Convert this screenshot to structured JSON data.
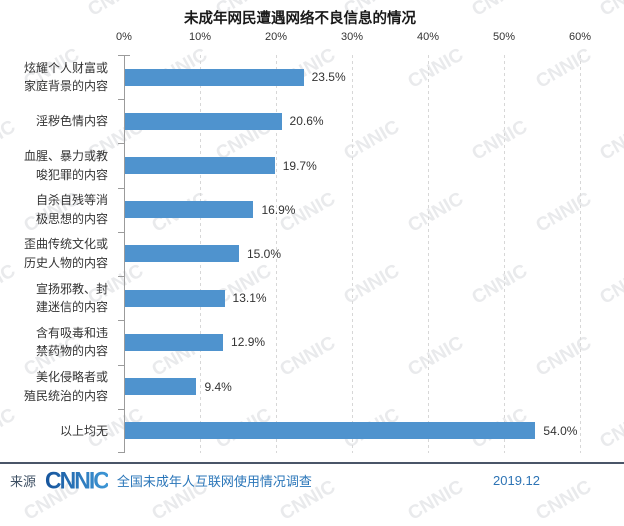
{
  "title": "未成年网民遭遇网络不良信息的情况",
  "chart_data": {
    "type": "bar",
    "orientation": "horizontal",
    "title": "未成年网民遭遇网络不良信息的情况",
    "categories": [
      "炫耀个人财富或\n家庭背景的内容",
      "淫秽色情内容",
      "血腥、暴力或教\n唆犯罪的内容",
      "自杀自残等消\n极思想的内容",
      "歪曲传统文化或\n历史人物的内容",
      "宣扬邪教、封\n建迷信的内容",
      "含有吸毒和违\n禁药物的内容",
      "美化侵略者或\n殖民统治的内容",
      "以上均无"
    ],
    "values": [
      23.5,
      20.6,
      19.7,
      16.9,
      15.0,
      13.1,
      12.9,
      9.4,
      54.0
    ],
    "value_labels": [
      "23.5%",
      "20.6%",
      "19.7%",
      "16.9%",
      "15.0%",
      "13.1%",
      "12.9%",
      "9.4%",
      "54.0%"
    ],
    "xlabel": "",
    "ylabel": "",
    "xlim": [
      0,
      60
    ],
    "x_tick_labels": [
      "0%",
      "10%",
      "20%",
      "30%",
      "40%",
      "50%",
      "60%"
    ],
    "grid": "vertical-dashed",
    "legend": "none",
    "bar_color": "#4f93ce"
  },
  "watermark": {
    "text": "CNNIC"
  },
  "footer": {
    "source_label": "来源",
    "logo_text": "CNNIC",
    "survey_name": "全国未成年人互联网使用情况调查",
    "date": "2019.12"
  },
  "colors": {
    "bar": "#4f93ce",
    "gridline": "#d7d7d7",
    "axis": "#9b9b9b",
    "text": "#333333",
    "footer_blue": "#2a76b9",
    "footer_rule": "#4a5568"
  }
}
